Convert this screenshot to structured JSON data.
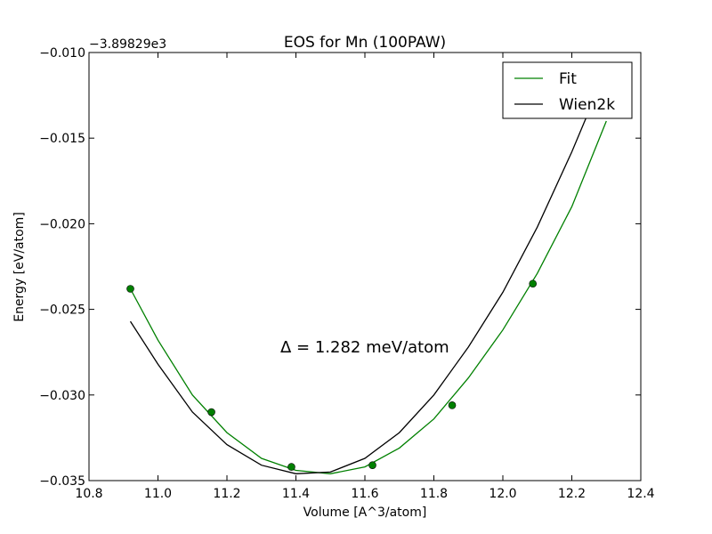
{
  "chart_data": {
    "type": "line",
    "title": "EOS for Mn (100PAW)",
    "xlabel": "Volume [A^3/atom]",
    "ylabel": "Energy [eV/atom]",
    "y_offset_label": "−3.89829e3",
    "xlim": [
      10.8,
      12.4
    ],
    "ylim": [
      -0.035,
      -0.01
    ],
    "x_ticks": [
      "10.8",
      "11.0",
      "11.2",
      "11.4",
      "11.6",
      "11.8",
      "12.0",
      "12.2",
      "12.4"
    ],
    "y_ticks": [
      "−0.035",
      "−0.030",
      "−0.025",
      "−0.020",
      "−0.015",
      "−0.010"
    ],
    "grid": false,
    "legend_position": "top-right",
    "annotation": "Δ = 1.282 meV/atom",
    "series": [
      {
        "name": "Fit",
        "color": "#008000",
        "points": [
          [
            10.92,
            -0.0238
          ],
          [
            11.0,
            -0.0268
          ],
          [
            11.1,
            -0.03
          ],
          [
            11.2,
            -0.0322
          ],
          [
            11.3,
            -0.0337
          ],
          [
            11.4,
            -0.0344
          ],
          [
            11.5,
            -0.0346
          ],
          [
            11.6,
            -0.0342
          ],
          [
            11.7,
            -0.0331
          ],
          [
            11.8,
            -0.0314
          ],
          [
            11.9,
            -0.029
          ],
          [
            12.0,
            -0.0262
          ],
          [
            12.1,
            -0.0229
          ],
          [
            12.2,
            -0.019
          ],
          [
            12.3,
            -0.014
          ]
        ],
        "markers": [
          [
            10.92,
            -0.0238
          ],
          [
            11.155,
            -0.031
          ],
          [
            11.387,
            -0.0342
          ],
          [
            11.622,
            -0.0341
          ],
          [
            11.853,
            -0.0306
          ],
          [
            12.087,
            -0.0235
          ]
        ]
      },
      {
        "name": "Wien2k",
        "color": "#000000",
        "points": [
          [
            10.92,
            -0.0257
          ],
          [
            11.0,
            -0.0282
          ],
          [
            11.1,
            -0.031
          ],
          [
            11.2,
            -0.0329
          ],
          [
            11.3,
            -0.0341
          ],
          [
            11.4,
            -0.0346
          ],
          [
            11.5,
            -0.0345
          ],
          [
            11.6,
            -0.0337
          ],
          [
            11.7,
            -0.0322
          ],
          [
            11.8,
            -0.03
          ],
          [
            11.9,
            -0.0272
          ],
          [
            12.0,
            -0.024
          ],
          [
            12.1,
            -0.0202
          ],
          [
            12.2,
            -0.0158
          ],
          [
            12.25,
            -0.0134
          ]
        ]
      }
    ]
  }
}
